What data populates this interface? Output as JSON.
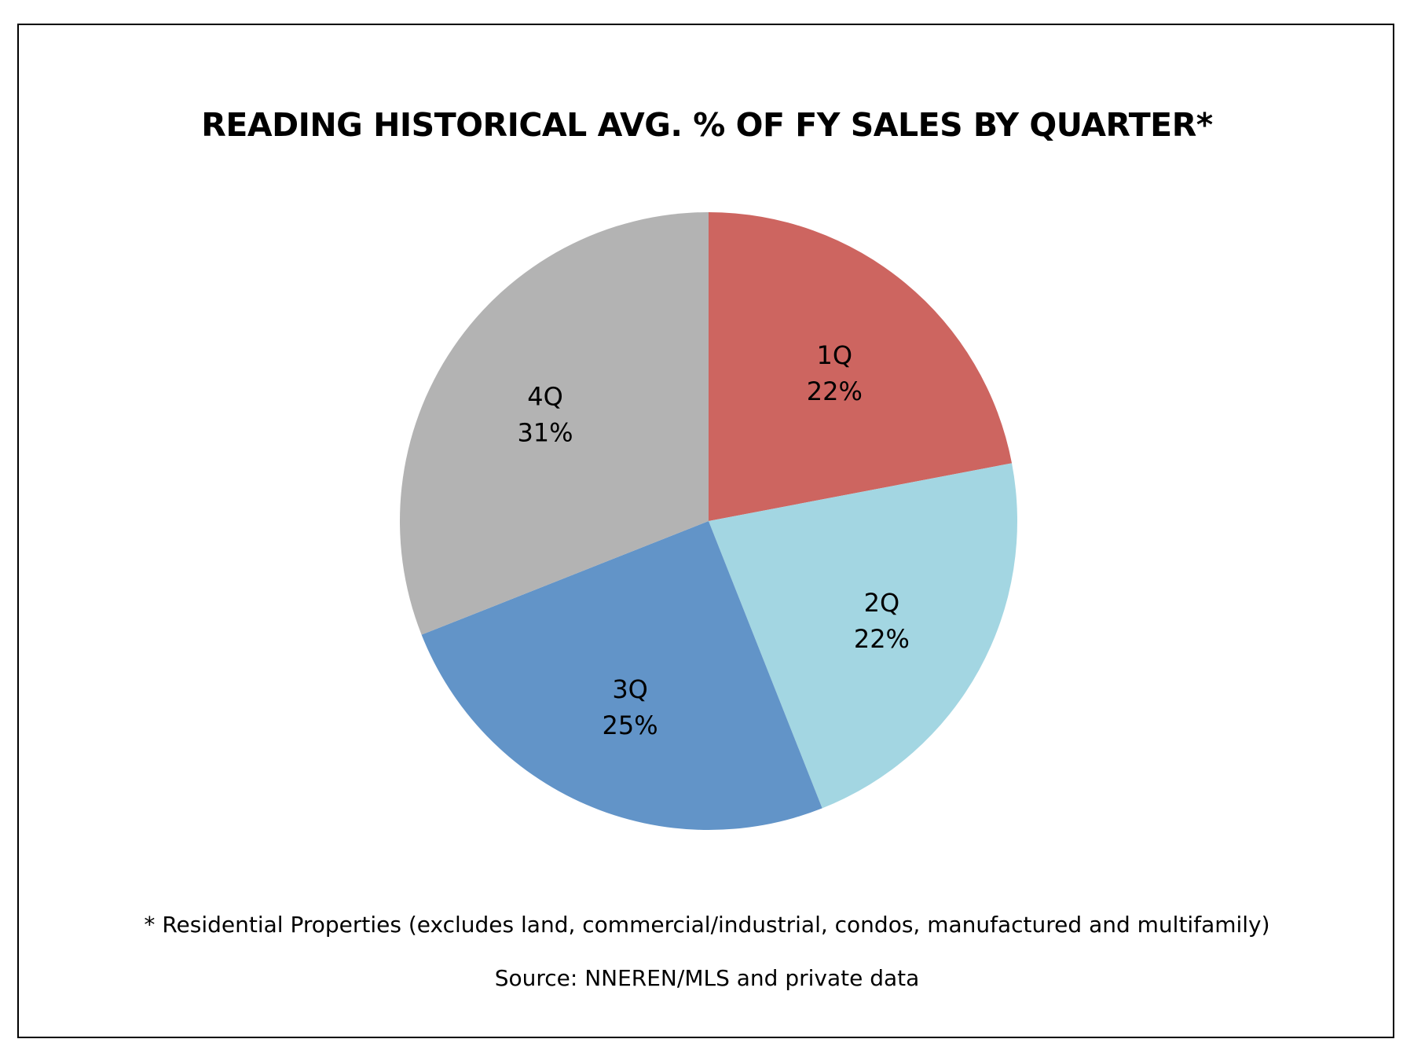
{
  "chart_data": {
    "type": "pie",
    "title": "READING HISTORICAL AVG. % OF FY SALES BY QUARTER*",
    "slices": [
      {
        "label": "1Q",
        "value": 22,
        "value_label": "22%",
        "color": "#cd6560"
      },
      {
        "label": "2Q",
        "value": 22,
        "value_label": "22%",
        "color": "#a3d6e2"
      },
      {
        "label": "3Q",
        "value": 25,
        "value_label": "25%",
        "color": "#6294c8"
      },
      {
        "label": "4Q",
        "value": 31,
        "value_label": "31%",
        "color": "#b3b3b3"
      }
    ],
    "start_angle": "12 o'clock",
    "direction": "clockwise",
    "legend": "none",
    "footnote": "* Residential Properties (excludes land, commercial/industrial, condos, manufactured and multifamily)",
    "source": "Source: NNEREN/MLS and private data"
  }
}
